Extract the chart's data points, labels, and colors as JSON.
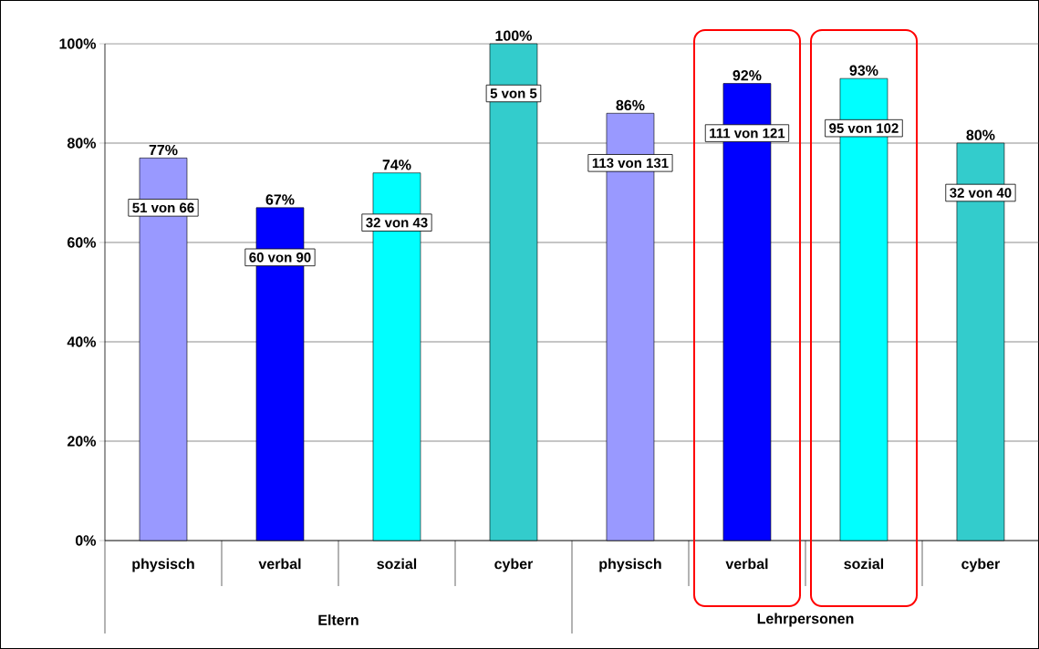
{
  "chart_data": {
    "type": "bar",
    "categories": [
      "physisch",
      "verbal",
      "sozial",
      "cyber",
      "physisch",
      "verbal",
      "sozial",
      "cyber"
    ],
    "values": [
      77,
      67,
      74,
      100,
      86,
      92,
      93,
      80
    ],
    "colors": [
      "#9999ff",
      "#0000ff",
      "#00ffff",
      "#33cccc",
      "#9999ff",
      "#0000ff",
      "#00ffff",
      "#33cccc"
    ],
    "value_labels": [
      "77%",
      "67%",
      "74%",
      "100%",
      "86%",
      "92%",
      "93%",
      "80%"
    ],
    "annotations": [
      "51 von 66",
      "60 von 90",
      "32 von 43",
      "5 von 5",
      "113 von 131",
      "111 von 121",
      "95 von 102",
      "32 von 40",
      "Eltern",
      "Lehrpersonen"
    ],
    "ylim": [
      0,
      100
    ],
    "yticks": [
      {
        "value": 0,
        "label": "0%"
      },
      {
        "value": 20,
        "label": "20%"
      },
      {
        "value": 40,
        "label": "40%"
      },
      {
        "value": 60,
        "label": "60%"
      },
      {
        "value": 80,
        "label": "80%"
      },
      {
        "value": 100,
        "label": "100%"
      }
    ],
    "grid": "y"
  }
}
